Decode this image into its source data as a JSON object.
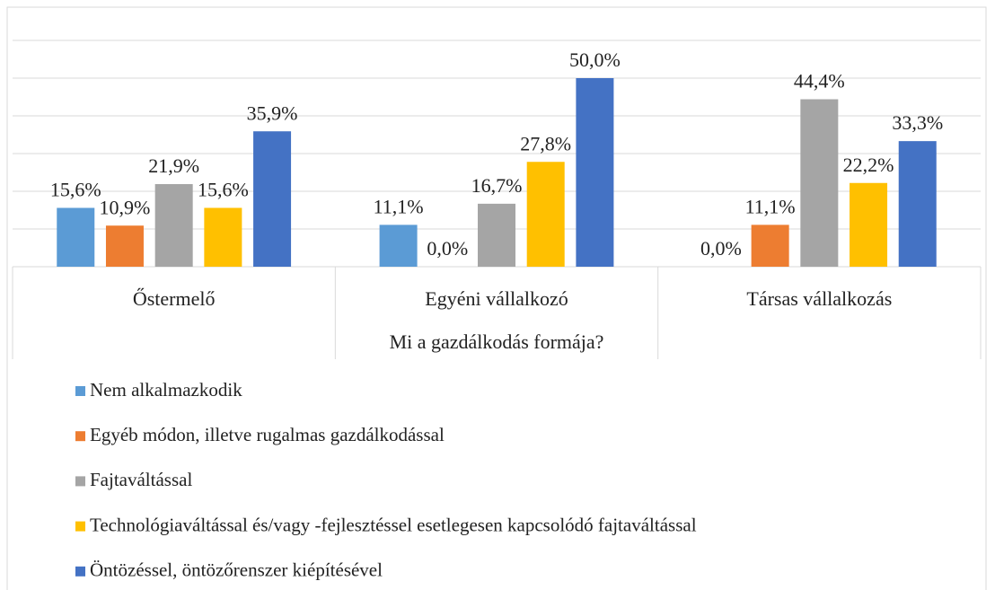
{
  "chart_data": {
    "type": "bar",
    "x_label": "Mi a gazdálkodás formája?",
    "categories": [
      "Őstermelő",
      "Egyéni vállalkozó",
      "Társas vállalkozás"
    ],
    "series": [
      {
        "name": "Nem alkalmazkodik",
        "color": "#5b9bd5",
        "values": [
          15.6,
          11.1,
          0.0
        ],
        "value_labels": [
          "15,6%",
          "11,1%",
          "0,0%"
        ]
      },
      {
        "name": "Egyéb módon, illetve rugalmas gazdálkodással",
        "color": "#ed7d31",
        "values": [
          10.9,
          0.0,
          11.1
        ],
        "value_labels": [
          "10,9%",
          "0,0%",
          "11,1%"
        ]
      },
      {
        "name": "Fajtaváltással",
        "color": "#a5a5a5",
        "values": [
          21.9,
          16.7,
          44.4
        ],
        "value_labels": [
          "21,9%",
          "16,7%",
          "44,4%"
        ]
      },
      {
        "name": "Technológiaváltással és/vagy -fejlesztéssel esetlegesen kapcsolódó fajtaváltással",
        "color": "#ffc000",
        "values": [
          15.6,
          27.8,
          22.2
        ],
        "value_labels": [
          "15,6%",
          "27,8%",
          "22,2%"
        ]
      },
      {
        "name": "Öntözéssel, öntözőrenszer kiépítésével",
        "color": "#4472c4",
        "values": [
          35.9,
          50.0,
          33.3
        ],
        "value_labels": [
          "35,9%",
          "50,0%",
          "33,3%"
        ]
      }
    ],
    "ylim": [
      0,
      60
    ],
    "yticks": [
      0,
      10,
      20,
      30,
      40,
      50,
      60
    ],
    "grid": true,
    "legend": "bottom"
  }
}
